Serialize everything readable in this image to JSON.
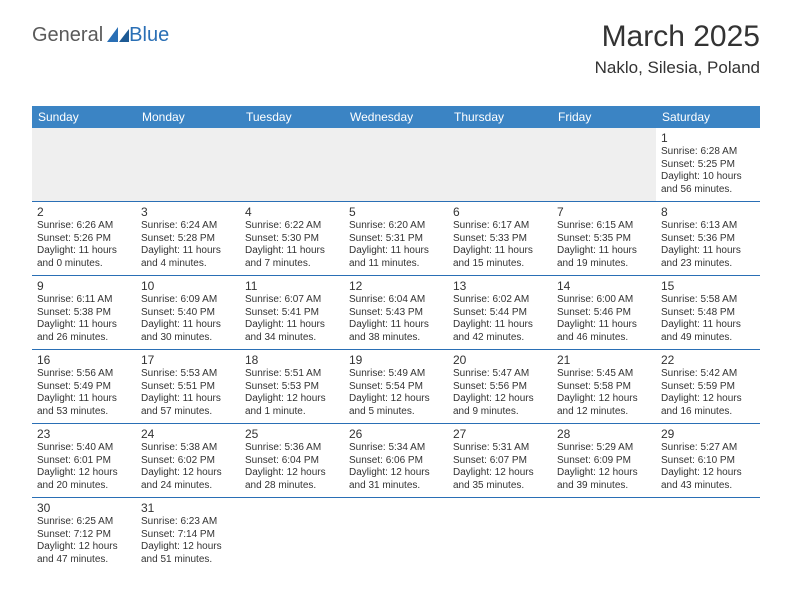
{
  "logo": {
    "part1": "General",
    "part2": "Blue"
  },
  "header": {
    "month": "March 2025",
    "location": "Naklo, Silesia, Poland"
  },
  "colors": {
    "header_bg": "#3b84c4",
    "header_text": "#ffffff",
    "border": "#2a6fb5",
    "prefill_bg": "#efefef",
    "text": "#333333",
    "logo_gray": "#5a5a5a",
    "logo_blue": "#2a6fb5"
  },
  "day_names": [
    "Sunday",
    "Monday",
    "Tuesday",
    "Wednesday",
    "Thursday",
    "Friday",
    "Saturday"
  ],
  "weeks": [
    [
      null,
      null,
      null,
      null,
      null,
      null,
      {
        "n": "1",
        "sr": "Sunrise: 6:28 AM",
        "ss": "Sunset: 5:25 PM",
        "d1": "Daylight: 10 hours",
        "d2": "and 56 minutes."
      }
    ],
    [
      {
        "n": "2",
        "sr": "Sunrise: 6:26 AM",
        "ss": "Sunset: 5:26 PM",
        "d1": "Daylight: 11 hours",
        "d2": "and 0 minutes."
      },
      {
        "n": "3",
        "sr": "Sunrise: 6:24 AM",
        "ss": "Sunset: 5:28 PM",
        "d1": "Daylight: 11 hours",
        "d2": "and 4 minutes."
      },
      {
        "n": "4",
        "sr": "Sunrise: 6:22 AM",
        "ss": "Sunset: 5:30 PM",
        "d1": "Daylight: 11 hours",
        "d2": "and 7 minutes."
      },
      {
        "n": "5",
        "sr": "Sunrise: 6:20 AM",
        "ss": "Sunset: 5:31 PM",
        "d1": "Daylight: 11 hours",
        "d2": "and 11 minutes."
      },
      {
        "n": "6",
        "sr": "Sunrise: 6:17 AM",
        "ss": "Sunset: 5:33 PM",
        "d1": "Daylight: 11 hours",
        "d2": "and 15 minutes."
      },
      {
        "n": "7",
        "sr": "Sunrise: 6:15 AM",
        "ss": "Sunset: 5:35 PM",
        "d1": "Daylight: 11 hours",
        "d2": "and 19 minutes."
      },
      {
        "n": "8",
        "sr": "Sunrise: 6:13 AM",
        "ss": "Sunset: 5:36 PM",
        "d1": "Daylight: 11 hours",
        "d2": "and 23 minutes."
      }
    ],
    [
      {
        "n": "9",
        "sr": "Sunrise: 6:11 AM",
        "ss": "Sunset: 5:38 PM",
        "d1": "Daylight: 11 hours",
        "d2": "and 26 minutes."
      },
      {
        "n": "10",
        "sr": "Sunrise: 6:09 AM",
        "ss": "Sunset: 5:40 PM",
        "d1": "Daylight: 11 hours",
        "d2": "and 30 minutes."
      },
      {
        "n": "11",
        "sr": "Sunrise: 6:07 AM",
        "ss": "Sunset: 5:41 PM",
        "d1": "Daylight: 11 hours",
        "d2": "and 34 minutes."
      },
      {
        "n": "12",
        "sr": "Sunrise: 6:04 AM",
        "ss": "Sunset: 5:43 PM",
        "d1": "Daylight: 11 hours",
        "d2": "and 38 minutes."
      },
      {
        "n": "13",
        "sr": "Sunrise: 6:02 AM",
        "ss": "Sunset: 5:44 PM",
        "d1": "Daylight: 11 hours",
        "d2": "and 42 minutes."
      },
      {
        "n": "14",
        "sr": "Sunrise: 6:00 AM",
        "ss": "Sunset: 5:46 PM",
        "d1": "Daylight: 11 hours",
        "d2": "and 46 minutes."
      },
      {
        "n": "15",
        "sr": "Sunrise: 5:58 AM",
        "ss": "Sunset: 5:48 PM",
        "d1": "Daylight: 11 hours",
        "d2": "and 49 minutes."
      }
    ],
    [
      {
        "n": "16",
        "sr": "Sunrise: 5:56 AM",
        "ss": "Sunset: 5:49 PM",
        "d1": "Daylight: 11 hours",
        "d2": "and 53 minutes."
      },
      {
        "n": "17",
        "sr": "Sunrise: 5:53 AM",
        "ss": "Sunset: 5:51 PM",
        "d1": "Daylight: 11 hours",
        "d2": "and 57 minutes."
      },
      {
        "n": "18",
        "sr": "Sunrise: 5:51 AM",
        "ss": "Sunset: 5:53 PM",
        "d1": "Daylight: 12 hours",
        "d2": "and 1 minute."
      },
      {
        "n": "19",
        "sr": "Sunrise: 5:49 AM",
        "ss": "Sunset: 5:54 PM",
        "d1": "Daylight: 12 hours",
        "d2": "and 5 minutes."
      },
      {
        "n": "20",
        "sr": "Sunrise: 5:47 AM",
        "ss": "Sunset: 5:56 PM",
        "d1": "Daylight: 12 hours",
        "d2": "and 9 minutes."
      },
      {
        "n": "21",
        "sr": "Sunrise: 5:45 AM",
        "ss": "Sunset: 5:58 PM",
        "d1": "Daylight: 12 hours",
        "d2": "and 12 minutes."
      },
      {
        "n": "22",
        "sr": "Sunrise: 5:42 AM",
        "ss": "Sunset: 5:59 PM",
        "d1": "Daylight: 12 hours",
        "d2": "and 16 minutes."
      }
    ],
    [
      {
        "n": "23",
        "sr": "Sunrise: 5:40 AM",
        "ss": "Sunset: 6:01 PM",
        "d1": "Daylight: 12 hours",
        "d2": "and 20 minutes."
      },
      {
        "n": "24",
        "sr": "Sunrise: 5:38 AM",
        "ss": "Sunset: 6:02 PM",
        "d1": "Daylight: 12 hours",
        "d2": "and 24 minutes."
      },
      {
        "n": "25",
        "sr": "Sunrise: 5:36 AM",
        "ss": "Sunset: 6:04 PM",
        "d1": "Daylight: 12 hours",
        "d2": "and 28 minutes."
      },
      {
        "n": "26",
        "sr": "Sunrise: 5:34 AM",
        "ss": "Sunset: 6:06 PM",
        "d1": "Daylight: 12 hours",
        "d2": "and 31 minutes."
      },
      {
        "n": "27",
        "sr": "Sunrise: 5:31 AM",
        "ss": "Sunset: 6:07 PM",
        "d1": "Daylight: 12 hours",
        "d2": "and 35 minutes."
      },
      {
        "n": "28",
        "sr": "Sunrise: 5:29 AM",
        "ss": "Sunset: 6:09 PM",
        "d1": "Daylight: 12 hours",
        "d2": "and 39 minutes."
      },
      {
        "n": "29",
        "sr": "Sunrise: 5:27 AM",
        "ss": "Sunset: 6:10 PM",
        "d1": "Daylight: 12 hours",
        "d2": "and 43 minutes."
      }
    ],
    [
      {
        "n": "30",
        "sr": "Sunrise: 6:25 AM",
        "ss": "Sunset: 7:12 PM",
        "d1": "Daylight: 12 hours",
        "d2": "and 47 minutes."
      },
      {
        "n": "31",
        "sr": "Sunrise: 6:23 AM",
        "ss": "Sunset: 7:14 PM",
        "d1": "Daylight: 12 hours",
        "d2": "and 51 minutes."
      },
      null,
      null,
      null,
      null,
      null
    ]
  ]
}
